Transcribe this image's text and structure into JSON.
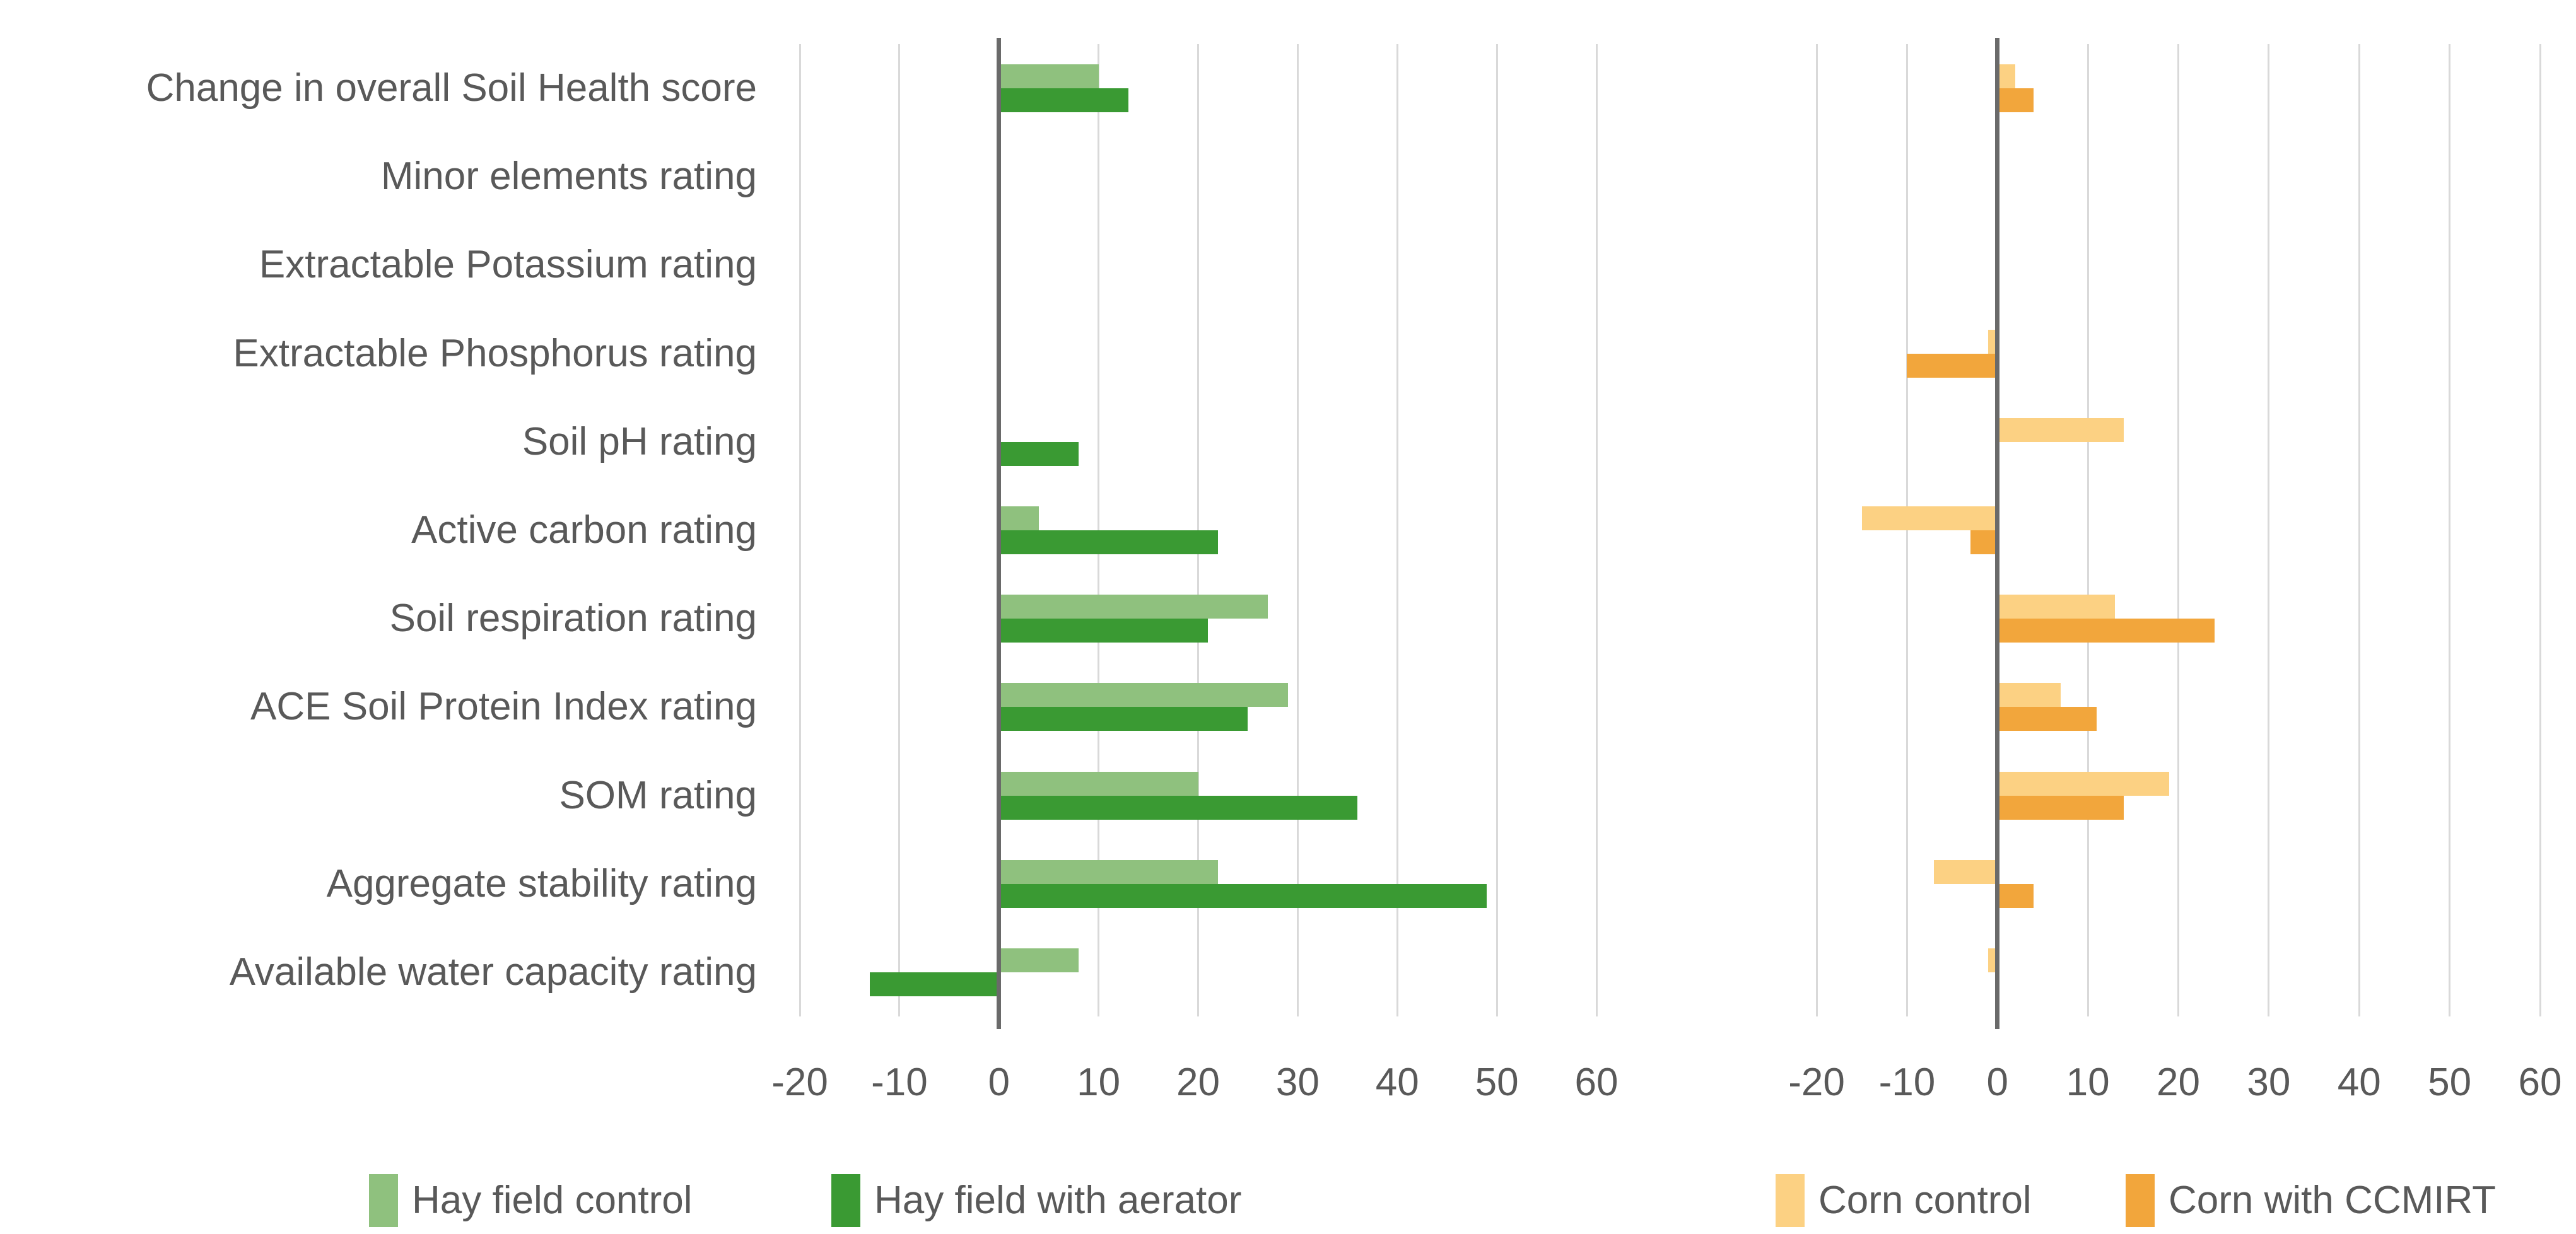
{
  "colors": {
    "background": "#FFFFFF",
    "gridline": "#D9D9D9",
    "zero_axis": "#6A6A6A",
    "text": "#595959",
    "hay_control": "#8FC17E",
    "hay_aerator": "#3A9A33",
    "corn_control": "#FCD183",
    "corn_ccmirt": "#F2A63C"
  },
  "chart_data": [
    {
      "type": "bar",
      "orientation": "horizontal",
      "title": "",
      "group": "Hay field",
      "categories": [
        "Change in overall Soil Health score",
        "Minor elements rating",
        "Extractable Potassium rating",
        "Extractable Phosphorus rating",
        "Soil pH rating",
        "Active carbon rating",
        "Soil respiration rating",
        "ACE Soil Protein Index rating",
        "SOM rating",
        "Aggregate stability rating",
        "Available water capacity rating"
      ],
      "series": [
        {
          "name": "Hay field control",
          "color": "#8FC17E",
          "values": [
            10,
            0,
            0,
            0,
            0,
            4,
            27,
            29,
            20,
            22,
            8
          ]
        },
        {
          "name": "Hay field with aerator",
          "color": "#3A9A33",
          "values": [
            13,
            0,
            0,
            0,
            8,
            22,
            21,
            25,
            36,
            49,
            -13
          ]
        }
      ],
      "xlim": [
        -20,
        60
      ],
      "xticks": [
        -20,
        -10,
        0,
        10,
        20,
        30,
        40,
        50,
        60
      ],
      "grid": true,
      "zero_axis": true,
      "legend_position": "bottom",
      "categories_shown": true
    },
    {
      "type": "bar",
      "orientation": "horizontal",
      "title": "",
      "group": "Corn",
      "categories": [
        "Change in overall Soil Health score",
        "Minor elements rating",
        "Extractable Potassium rating",
        "Extractable Phosphorus rating",
        "Soil pH rating",
        "Active carbon rating",
        "Soil respiration rating",
        "ACE Soil Protein Index rating",
        "SOM rating",
        "Aggregate stability rating",
        "Available water capacity rating"
      ],
      "series": [
        {
          "name": "Corn control",
          "color": "#FCD183",
          "values": [
            2,
            0,
            0,
            -1,
            14,
            -15,
            13,
            7,
            19,
            -7,
            -1
          ]
        },
        {
          "name": "Corn with CCMIRT",
          "color": "#F2A63C",
          "values": [
            4,
            0,
            0,
            -10,
            0,
            -3,
            24,
            11,
            14,
            4,
            0
          ]
        }
      ],
      "xlim": [
        -20,
        60
      ],
      "xticks": [
        -20,
        -10,
        0,
        10,
        20,
        30,
        40,
        50,
        60
      ],
      "grid": true,
      "zero_axis": true,
      "legend_position": "bottom",
      "categories_shown": false
    }
  ],
  "legend": {
    "items": [
      {
        "label": "Hay field control",
        "color": "#8FC17E"
      },
      {
        "label": "Hay field with aerator",
        "color": "#3A9A33"
      },
      {
        "label": "Corn control",
        "color": "#FCD183"
      },
      {
        "label": "Corn with CCMIRT",
        "color": "#F2A63C"
      }
    ]
  }
}
